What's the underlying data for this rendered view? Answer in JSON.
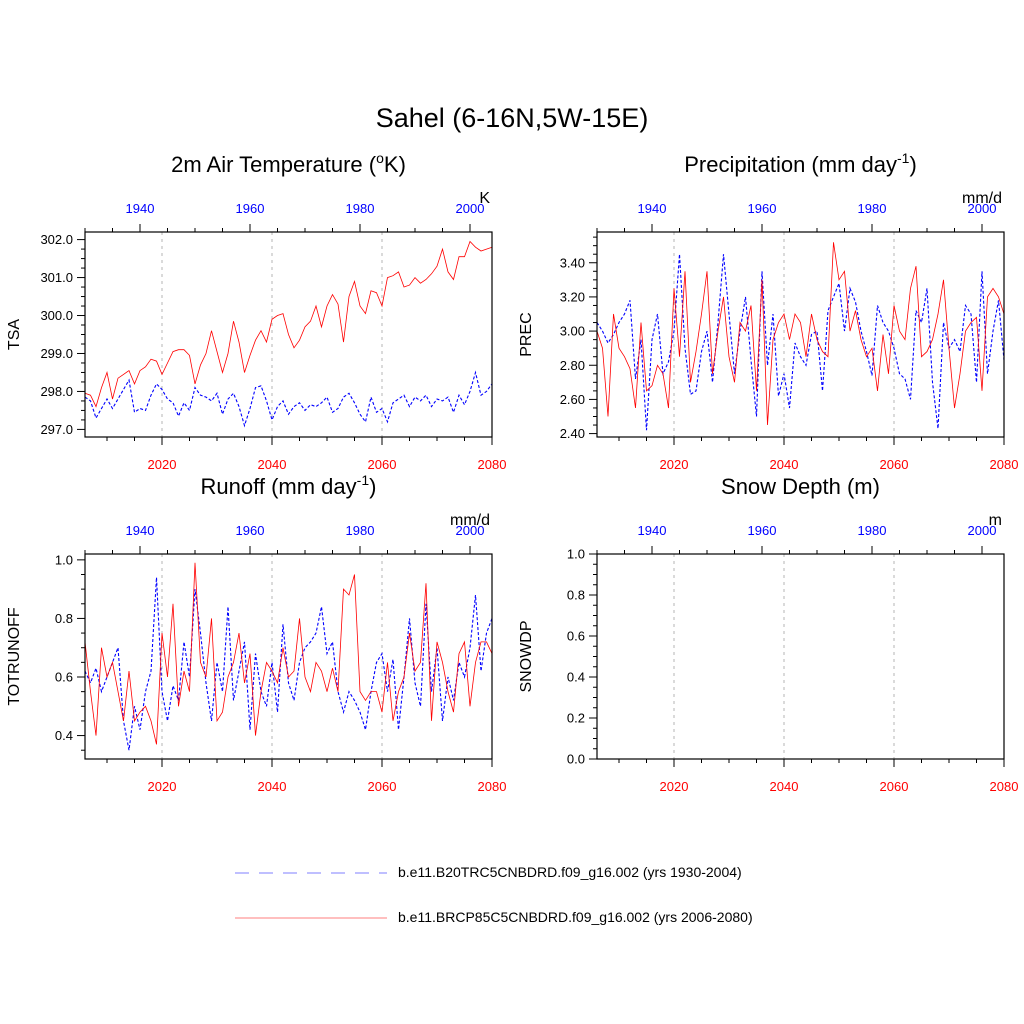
{
  "main_title": "Sahel (6-16N,5W-15E)",
  "colors": {
    "historical": "#0000ff",
    "future": "#ff0000",
    "axis": "#000000",
    "grid": "#b4b4b4"
  },
  "panels": [
    {
      "title": "2m Air Temperature (",
      "title_sup": "o",
      "title_suffix": "K)",
      "units": "K",
      "ylabel": "TSA",
      "ylim": [
        296.8,
        302.2
      ],
      "yticks": [
        "297.0",
        "298.0",
        "299.0",
        "300.0",
        "301.0",
        "302.0"
      ],
      "top_ticks": [
        "1940",
        "1960",
        "1980",
        "2000"
      ],
      "bottom_ticks": [
        "2020",
        "2040",
        "2060",
        "2080"
      ]
    },
    {
      "title": "Precipitation (mm day",
      "title_sup": "-1",
      "title_suffix": ")",
      "units": "mm/d",
      "ylabel": "PREC",
      "ylim": [
        2.38,
        3.58
      ],
      "yticks": [
        "2.40",
        "2.60",
        "2.80",
        "3.00",
        "3.20",
        "3.40"
      ],
      "top_ticks": [
        "1940",
        "1960",
        "1980",
        "2000"
      ],
      "bottom_ticks": [
        "2020",
        "2040",
        "2060",
        "2080"
      ]
    },
    {
      "title": "Runoff (mm day",
      "title_sup": "-1",
      "title_suffix": ")",
      "units": "mm/d",
      "ylabel": "TOTRUNOFF",
      "ylim": [
        0.32,
        1.02
      ],
      "yticks": [
        "0.4",
        "0.6",
        "0.8",
        "1.0"
      ],
      "top_ticks": [
        "1940",
        "1960",
        "1980",
        "2000"
      ],
      "bottom_ticks": [
        "2020",
        "2040",
        "2060",
        "2080"
      ]
    },
    {
      "title": "Snow Depth (m)",
      "title_sup": "",
      "title_suffix": "",
      "units": "m",
      "ylabel": "SNOWDP",
      "ylim": [
        0.0,
        1.0
      ],
      "yticks": [
        "0.0",
        "0.2",
        "0.4",
        "0.6",
        "0.8",
        "1.0"
      ],
      "top_ticks": [
        "1940",
        "1960",
        "1980",
        "2000"
      ],
      "bottom_ticks": [
        "2020",
        "2040",
        "2060",
        "2080"
      ]
    }
  ],
  "legend": [
    {
      "label": "b.e11.B20TRC5CNBDRD.f09_g16.002 (yrs 1930-2004)",
      "color": "#0000ff",
      "style": "dashed"
    },
    {
      "label": "b.e11.BRCP85C5CNBDRD.f09_g16.002 (yrs 2006-2080)",
      "color": "#ff0000",
      "style": "solid"
    }
  ],
  "chart_data": [
    {
      "type": "line",
      "title": "2m Air Temperature (oK)",
      "ylabel": "TSA",
      "units": "K",
      "x_bottom_range": [
        2006,
        2080
      ],
      "x_top_range": [
        1930,
        2004
      ],
      "ylim": [
        296.8,
        302.2
      ],
      "series": [
        {
          "name": "b.e11.B20TRC5CNBDRD.f09_g16.002 (yrs 1930-2004)",
          "axis": "top",
          "x_start": 1930,
          "values": [
            297.85,
            297.75,
            297.3,
            297.55,
            297.8,
            297.55,
            297.8,
            298.05,
            298.3,
            297.45,
            297.55,
            297.5,
            297.9,
            298.2,
            298.05,
            297.8,
            297.7,
            297.35,
            297.7,
            297.5,
            298.1,
            297.9,
            297.85,
            297.75,
            297.95,
            297.4,
            297.8,
            297.95,
            297.6,
            297.1,
            297.55,
            298.1,
            298.15,
            297.75,
            297.25,
            297.6,
            297.75,
            297.4,
            297.6,
            297.7,
            297.5,
            297.65,
            297.6,
            297.7,
            297.85,
            297.45,
            297.55,
            297.85,
            297.95,
            297.7,
            297.4,
            297.2,
            297.85,
            297.45,
            297.55,
            297.2,
            297.7,
            297.8,
            297.9,
            297.6,
            297.85,
            297.75,
            297.9,
            297.6,
            297.8,
            297.75,
            297.85,
            297.45,
            297.9,
            297.65,
            298.0,
            298.5,
            297.9,
            298.0,
            298.2
          ]
        },
        {
          "name": "b.e11.BRCP85C5CNBDRD.f09_g16.002 (yrs 2006-2080)",
          "axis": "bottom",
          "x_start": 2006,
          "values": [
            297.95,
            297.9,
            297.6,
            298.1,
            298.5,
            297.8,
            298.35,
            298.45,
            298.55,
            298.2,
            298.55,
            298.65,
            298.85,
            298.8,
            298.45,
            298.75,
            299.05,
            299.1,
            299.1,
            298.95,
            298.2,
            298.7,
            299.0,
            299.6,
            299.05,
            298.5,
            299.0,
            299.85,
            299.3,
            298.5,
            298.95,
            299.35,
            299.6,
            299.3,
            299.9,
            300.0,
            300.05,
            299.5,
            299.15,
            299.35,
            299.7,
            299.85,
            300.25,
            299.7,
            300.25,
            300.55,
            300.3,
            299.3,
            300.5,
            300.9,
            300.25,
            300.05,
            300.65,
            300.6,
            300.25,
            301.0,
            301.05,
            301.15,
            300.75,
            300.8,
            301.0,
            300.85,
            300.95,
            301.1,
            301.3,
            301.75,
            301.15,
            300.95,
            301.55,
            301.55,
            301.95,
            301.8,
            301.7,
            301.75,
            301.8
          ]
        }
      ]
    },
    {
      "type": "line",
      "title": "Precipitation (mm day-1)",
      "ylabel": "PREC",
      "units": "mm/d",
      "x_bottom_range": [
        2006,
        2080
      ],
      "x_top_range": [
        1930,
        2004
      ],
      "ylim": [
        2.38,
        3.58
      ],
      "series": [
        {
          "name": "b.e11.B20TRC5CNBDRD.f09_g16.002 (yrs 1930-2004)",
          "axis": "top",
          "x_start": 1930,
          "values": [
            3.05,
            3.0,
            2.93,
            2.98,
            3.05,
            3.1,
            3.18,
            2.72,
            2.95,
            2.42,
            2.95,
            3.1,
            2.75,
            2.82,
            3.0,
            3.45,
            2.9,
            2.63,
            2.65,
            2.88,
            3.0,
            2.7,
            3.05,
            3.45,
            3.1,
            2.75,
            3.0,
            3.2,
            2.83,
            2.5,
            3.35,
            2.8,
            3.1,
            2.62,
            2.75,
            2.55,
            2.93,
            2.85,
            2.8,
            2.98,
            3.0,
            2.65,
            3.12,
            3.2,
            3.28,
            3.0,
            3.25,
            3.17,
            3.0,
            2.88,
            2.74,
            3.15,
            3.05,
            3.0,
            2.9,
            2.75,
            2.72,
            2.6,
            3.12,
            3.05,
            3.25,
            2.7,
            2.43,
            3.05,
            2.9,
            2.95,
            2.88,
            3.15,
            3.1,
            2.7,
            3.35,
            2.75,
            3.0,
            3.18,
            2.83
          ]
        },
        {
          "name": "b.e11.BRCP85C5CNBDRD.f09_g16.002 (yrs 2006-2080)",
          "axis": "bottom",
          "x_start": 2006,
          "values": [
            3.0,
            2.9,
            2.5,
            3.1,
            2.9,
            2.85,
            2.78,
            2.55,
            3.05,
            2.65,
            2.68,
            2.8,
            2.75,
            2.55,
            3.25,
            2.85,
            3.35,
            2.7,
            2.88,
            3.1,
            3.35,
            2.75,
            3.0,
            3.2,
            2.85,
            2.7,
            3.05,
            3.0,
            3.15,
            2.65,
            3.3,
            2.45,
            2.95,
            3.05,
            3.1,
            2.95,
            3.1,
            3.05,
            2.85,
            3.1,
            2.95,
            2.88,
            2.85,
            3.52,
            3.3,
            3.35,
            3.0,
            3.12,
            2.95,
            2.85,
            2.9,
            2.65,
            2.98,
            2.75,
            3.15,
            3.0,
            2.95,
            3.25,
            3.38,
            2.85,
            2.88,
            2.95,
            3.1,
            3.3,
            2.9,
            2.55,
            2.75,
            3.0,
            3.05,
            3.08,
            2.65,
            3.2,
            3.25,
            3.2,
            3.1
          ]
        }
      ]
    },
    {
      "type": "line",
      "title": "Runoff (mm day-1)",
      "ylabel": "TOTRUNOFF",
      "units": "mm/d",
      "x_bottom_range": [
        2006,
        2080
      ],
      "x_top_range": [
        1930,
        2004
      ],
      "ylim": [
        0.32,
        1.02
      ],
      "series": [
        {
          "name": "b.e11.B20TRC5CNBDRD.f09_g16.002 (yrs 1930-2004)",
          "axis": "top",
          "x_start": 1930,
          "values": [
            0.62,
            0.58,
            0.63,
            0.55,
            0.6,
            0.65,
            0.7,
            0.45,
            0.35,
            0.5,
            0.42,
            0.55,
            0.62,
            0.94,
            0.55,
            0.45,
            0.57,
            0.52,
            0.72,
            0.6,
            0.9,
            0.75,
            0.58,
            0.45,
            0.65,
            0.55,
            0.84,
            0.52,
            0.62,
            0.72,
            0.42,
            0.68,
            0.55,
            0.5,
            0.65,
            0.48,
            0.78,
            0.58,
            0.52,
            0.65,
            0.7,
            0.72,
            0.75,
            0.84,
            0.68,
            0.72,
            0.55,
            0.48,
            0.55,
            0.52,
            0.48,
            0.42,
            0.55,
            0.65,
            0.68,
            0.55,
            0.66,
            0.42,
            0.6,
            0.8,
            0.58,
            0.5,
            0.85,
            0.55,
            0.7,
            0.45,
            0.6,
            0.52,
            0.65,
            0.6,
            0.7,
            0.88,
            0.62,
            0.75,
            0.8
          ]
        },
        {
          "name": "b.e11.BRCP85C5CNBDRD.f09_g16.002 (yrs 2006-2080)",
          "axis": "bottom",
          "x_start": 2006,
          "values": [
            0.72,
            0.55,
            0.4,
            0.7,
            0.6,
            0.65,
            0.55,
            0.45,
            0.62,
            0.45,
            0.48,
            0.5,
            0.45,
            0.37,
            0.75,
            0.6,
            0.85,
            0.5,
            0.62,
            0.55,
            0.99,
            0.65,
            0.6,
            0.8,
            0.45,
            0.48,
            0.6,
            0.65,
            0.75,
            0.58,
            0.68,
            0.4,
            0.55,
            0.65,
            0.62,
            0.58,
            0.7,
            0.6,
            0.62,
            0.8,
            0.6,
            0.55,
            0.65,
            0.62,
            0.55,
            0.63,
            0.55,
            0.9,
            0.88,
            0.95,
            0.55,
            0.52,
            0.55,
            0.55,
            0.48,
            0.65,
            0.45,
            0.55,
            0.6,
            0.75,
            0.62,
            0.65,
            0.92,
            0.45,
            0.72,
            0.65,
            0.55,
            0.48,
            0.68,
            0.72,
            0.5,
            0.65,
            0.72,
            0.72,
            0.68
          ]
        }
      ]
    },
    {
      "type": "line",
      "title": "Snow Depth (m)",
      "ylabel": "SNOWDP",
      "units": "m",
      "x_bottom_range": [
        2006,
        2080
      ],
      "x_top_range": [
        1930,
        2004
      ],
      "ylim": [
        0.0,
        1.0
      ],
      "series": []
    }
  ]
}
